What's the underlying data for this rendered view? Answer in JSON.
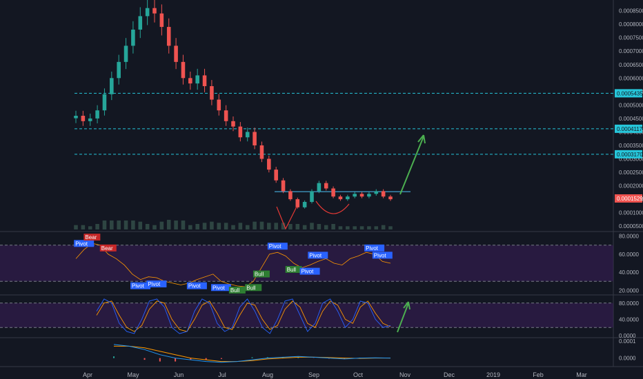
{
  "chart_data": {
    "type": "candlestick",
    "x_ticks": [
      "Apr",
      "May",
      "Jun",
      "Jul",
      "Aug",
      "Sep",
      "Oct",
      "Nov",
      "Dec",
      "2019",
      "Feb",
      "Mar"
    ],
    "price_axis": {
      "ticks": [
        "0.0008500",
        "0.0008000",
        "0.0007500",
        "0.0007000",
        "0.0006500",
        "0.0006000",
        "0.0005500",
        "0.0005000",
        "0.0004500",
        "0.0004000",
        "0.0003500",
        "0.0003000",
        "0.0002500",
        "0.0002000",
        "0.0001500",
        "0.0001000",
        "0.0000500"
      ],
      "ylim": [
        3e-05,
        0.00089
      ]
    },
    "horizontal_levels": [
      {
        "value": 0.0005435,
        "label": "0.0005435",
        "color": "#26c6da"
      },
      {
        "value": 0.0004117,
        "label": "0.0004117",
        "color": "#26c6da"
      },
      {
        "value": 0.000317,
        "label": "0.0003170",
        "color": "#26c6da"
      }
    ],
    "current_price": {
      "value": 0.0001529,
      "label": "0.0001529",
      "color": "#ef5350"
    },
    "resistance_line": {
      "value": 0.000178,
      "x_start": "Aug",
      "x_end": "Oct+"
    },
    "price_series": [
      0.00046,
      0.00044,
      0.00045,
      0.00048,
      0.00054,
      0.0006,
      0.00066,
      0.00072,
      0.00078,
      0.00083,
      0.00086,
      0.00084,
      0.00079,
      0.00072,
      0.00066,
      0.0006,
      0.00058,
      0.00061,
      0.00057,
      0.00052,
      0.00048,
      0.00044,
      0.00042,
      0.00038,
      0.0004,
      0.00035,
      0.0003,
      0.00026,
      0.00022,
      0.00018,
      0.00015,
      0.00012,
      0.00014,
      0.00018,
      0.00021,
      0.00019,
      0.00016,
      0.00015,
      0.00016,
      0.00017,
      0.00016,
      0.00017,
      0.00018,
      0.00016,
      0.00015
    ],
    "rsi": {
      "ticks": [
        "80.0000",
        "60.0000",
        "40.0000",
        "20.0000"
      ],
      "ylim": [
        15,
        85
      ],
      "bands": [
        70,
        30
      ],
      "series": [
        55,
        65,
        72,
        70,
        60,
        55,
        48,
        38,
        32,
        35,
        34,
        30,
        28,
        26,
        28,
        32,
        35,
        38,
        30,
        27,
        25,
        24,
        30,
        45,
        60,
        62,
        58,
        50,
        45,
        48,
        52,
        55,
        50,
        48,
        55,
        58,
        62,
        60,
        52,
        50
      ],
      "labels": [
        {
          "text": "Pivot",
          "kind": "pivot",
          "i": 1
        },
        {
          "text": "Bear",
          "kind": "bear",
          "i": 2
        },
        {
          "text": "Bear",
          "kind": "bear",
          "i": 4
        },
        {
          "text": "Pivot",
          "kind": "pivot",
          "i": 8
        },
        {
          "text": "Pivot",
          "kind": "pivot",
          "i": 10
        },
        {
          "text": "Pivot",
          "kind": "pivot",
          "i": 15
        },
        {
          "text": "Pivot",
          "kind": "pivot",
          "i": 18
        },
        {
          "text": "Bull",
          "kind": "bull",
          "i": 20
        },
        {
          "text": "Bull",
          "kind": "bull",
          "i": 22
        },
        {
          "text": "Bull",
          "kind": "bull",
          "i": 23
        },
        {
          "text": "Pivot",
          "kind": "pivot",
          "i": 25
        },
        {
          "text": "Bull",
          "kind": "bull",
          "i": 27
        },
        {
          "text": "Pivot",
          "kind": "pivot",
          "i": 29
        },
        {
          "text": "Pivot",
          "kind": "pivot",
          "i": 30
        },
        {
          "text": "Pivot",
          "kind": "pivot",
          "i": 37
        },
        {
          "text": "Pivot",
          "kind": "pivot",
          "i": 38
        }
      ]
    },
    "stoch": {
      "ticks": [
        "80.0000",
        "40.0000",
        "0.0000"
      ],
      "ylim": [
        -5,
        100
      ],
      "bands": [
        80,
        20
      ],
      "k": [
        60,
        90,
        80,
        30,
        10,
        5,
        40,
        85,
        90,
        70,
        20,
        5,
        10,
        60,
        90,
        80,
        30,
        10,
        20,
        70,
        90,
        60,
        20,
        5,
        40,
        85,
        90,
        50,
        10,
        30,
        80,
        90,
        60,
        20,
        40,
        85,
        80,
        40,
        20,
        25
      ],
      "d": [
        50,
        80,
        85,
        50,
        20,
        10,
        25,
        65,
        85,
        80,
        40,
        15,
        10,
        40,
        75,
        85,
        55,
        20,
        15,
        50,
        80,
        75,
        40,
        15,
        25,
        65,
        85,
        70,
        30,
        20,
        60,
        85,
        75,
        40,
        30,
        70,
        85,
        55,
        30,
        22
      ]
    },
    "macd": {
      "ticks": [
        "0.0001",
        "0.0000"
      ],
      "ylim": [
        -5e-05,
        0.00012
      ],
      "line": [
        8e-05,
        7e-05,
        5e-05,
        2e-05,
        0.0,
        -1e-05,
        -2e-05,
        -2.5e-05,
        -2e-05,
        -1e-05,
        0.0,
        5e-06,
        1e-05,
        5e-06,
        0.0,
        -5e-06,
        0.0,
        2e-06,
        0.0
      ],
      "signal": [
        7e-05,
        7e-05,
        6e-05,
        4e-05,
        2e-05,
        0.0,
        -1e-05,
        -2e-05,
        -2e-05,
        -1.5e-05,
        -5e-06,
        0.0,
        5e-06,
        6e-06,
        3e-06,
        0.0,
        -2e-06,
        0.0,
        0.0
      ]
    }
  }
}
